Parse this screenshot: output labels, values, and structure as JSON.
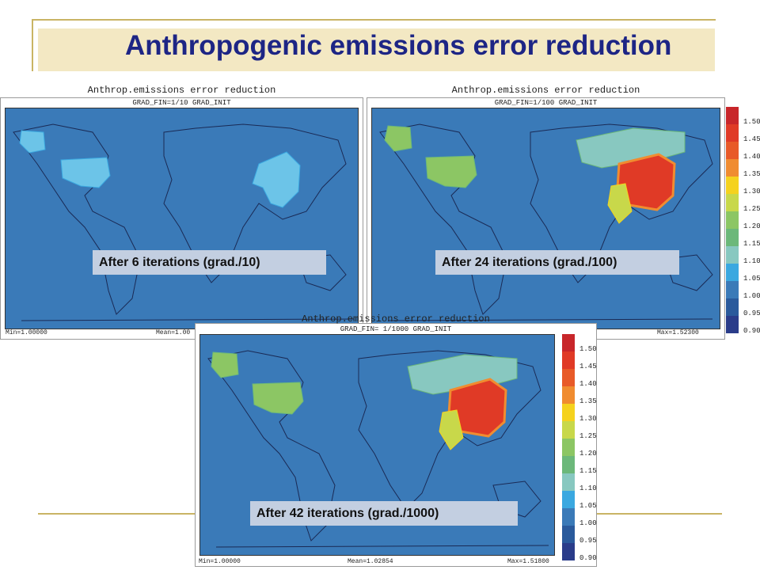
{
  "slide": {
    "title": "Anthropogenic emissions error reduction",
    "colors": {
      "title_text": "#1d2585",
      "title_band": "#f3e8c3",
      "rule": "#c9b464",
      "ocean": "#3a7ab8",
      "caption_bg": "#c3cfe1"
    }
  },
  "panels": {
    "p1": {
      "title": "Anthrop.emissions error reduction",
      "subtitle": "GRAD_FIN=1/10 GRAD_INIT",
      "min": "Min=1.00000",
      "mean": "Mean=1.00",
      "caption": "After 6 iterations (grad./10)"
    },
    "p2": {
      "title": "Anthrop.emissions error reduction",
      "subtitle": "GRAD_FIN=1/100 GRAD_INIT",
      "max": "Max=1.52300",
      "caption": "After 24 iterations (grad./100)"
    },
    "p3": {
      "title": "Anthrop.emissions error reduction",
      "subtitle": "GRAD_FIN= 1/1000 GRAD_INIT",
      "min": "Min=1.00000",
      "mean": "Mean=1.02854",
      "max": "Max=1.51800",
      "caption": "After 42 iterations (grad./1000)"
    }
  },
  "colorbar": {
    "labels": [
      "1.50",
      "1.45",
      "1.40",
      "1.35",
      "1.30",
      "1.25",
      "1.20",
      "1.15",
      "1.10",
      "1.05",
      "1.00",
      "0.95",
      "0.90"
    ],
    "colors": [
      "#c8262a",
      "#e03a26",
      "#e85a28",
      "#f08c30",
      "#f5d21e",
      "#c8d84a",
      "#8cc664",
      "#6cb87a",
      "#88c8c0",
      "#3aa8e0",
      "#3a7ab8",
      "#2a5a9c",
      "#2a3c8a"
    ]
  }
}
